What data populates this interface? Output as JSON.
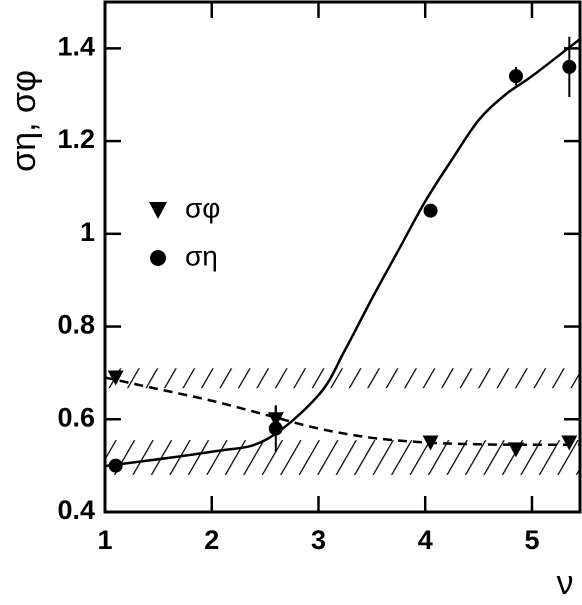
{
  "chart_data": {
    "type": "scatter",
    "x_label": "ν",
    "y_label": "ση, σφ",
    "xlim": [
      1,
      5.45
    ],
    "ylim": [
      0.4,
      1.5
    ],
    "xticks": [
      1,
      2,
      3,
      4,
      5
    ],
    "yticks": [
      0.4,
      0.6,
      0.8,
      1,
      1.2,
      1.4
    ],
    "color": "#000000",
    "series": [
      {
        "name": "σφ",
        "marker": "triangle-down",
        "x": [
          1.1,
          2.6,
          4.05,
          4.85,
          5.35
        ],
        "values": [
          0.69,
          0.6,
          0.55,
          0.535,
          0.55
        ],
        "errors": [
          0.01,
          0.03,
          0.01,
          0.01,
          0.01
        ]
      },
      {
        "name": "ση",
        "marker": "circle",
        "x": [
          1.1,
          2.6,
          4.05,
          4.85,
          5.35
        ],
        "values": [
          0.5,
          0.58,
          1.05,
          1.34,
          1.36
        ],
        "errors": [
          0.01,
          0.05,
          0.01,
          0.02,
          0.065
        ]
      }
    ],
    "curves": [
      {
        "style": "dashed",
        "x": [
          1,
          1.5,
          2,
          2.5,
          3,
          3.5,
          4,
          4.5,
          5,
          5.45
        ],
        "values": [
          0.69,
          0.665,
          0.64,
          0.61,
          0.58,
          0.56,
          0.55,
          0.546,
          0.545,
          0.545
        ]
      },
      {
        "style": "solid",
        "x": [
          1,
          2,
          2.5,
          3,
          3.25,
          3.5,
          3.75,
          4,
          4.25,
          4.5,
          4.75,
          5,
          5.45
        ],
        "values": [
          0.499,
          0.53,
          0.555,
          0.652,
          0.75,
          0.86,
          0.965,
          1.07,
          1.16,
          1.245,
          1.3,
          1.34,
          1.42
        ]
      }
    ],
    "bands": [
      {
        "low": 0.667,
        "high": 0.71
      },
      {
        "low": 0.48,
        "high": 0.555
      }
    ]
  }
}
